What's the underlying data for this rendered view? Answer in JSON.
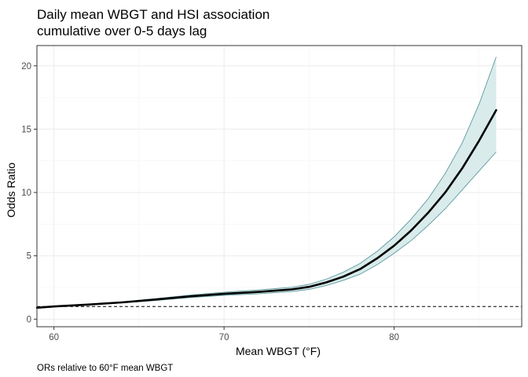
{
  "chart_data": {
    "type": "line",
    "title_lines": [
      "Daily mean WBGT and HSI association",
      "cumulative over 0-5 days lag"
    ],
    "xlabel": "Mean WBGT (°F)",
    "ylabel": "Odds Ratio",
    "caption": "ORs relative to 60°F mean WBGT",
    "xlim": [
      59,
      87.5
    ],
    "ylim": [
      -0.6,
      21.6
    ],
    "x_ticks": [
      60,
      70,
      80
    ],
    "y_ticks": [
      0,
      5,
      10,
      15,
      20
    ],
    "grid": true,
    "reference_line": {
      "y": 1,
      "style": "dashed"
    },
    "series": [
      {
        "x": [
          59,
          60,
          62,
          64,
          66,
          68,
          70,
          72,
          74,
          75,
          76,
          77,
          78,
          79,
          80,
          81,
          82,
          83,
          84,
          85,
          86
        ],
        "y": [
          0.9,
          1.0,
          1.15,
          1.32,
          1.55,
          1.8,
          2.0,
          2.15,
          2.35,
          2.55,
          2.9,
          3.35,
          3.95,
          4.8,
          5.8,
          7.0,
          8.4,
          10.0,
          11.9,
          14.1,
          16.5
        ],
        "lower": [
          0.86,
          1.0,
          1.12,
          1.28,
          1.48,
          1.7,
          1.88,
          2.0,
          2.18,
          2.35,
          2.65,
          3.05,
          3.55,
          4.3,
          5.2,
          6.2,
          7.4,
          8.7,
          10.2,
          11.7,
          13.2
        ],
        "upper": [
          0.94,
          1.0,
          1.18,
          1.36,
          1.62,
          1.9,
          2.12,
          2.3,
          2.52,
          2.75,
          3.15,
          3.7,
          4.4,
          5.35,
          6.5,
          7.9,
          9.5,
          11.5,
          13.9,
          17.0,
          20.7
        ]
      }
    ],
    "colors": {
      "band_fill": "#d9ebeb",
      "band_edge": "#5f9aa0",
      "line": "#000000"
    }
  }
}
